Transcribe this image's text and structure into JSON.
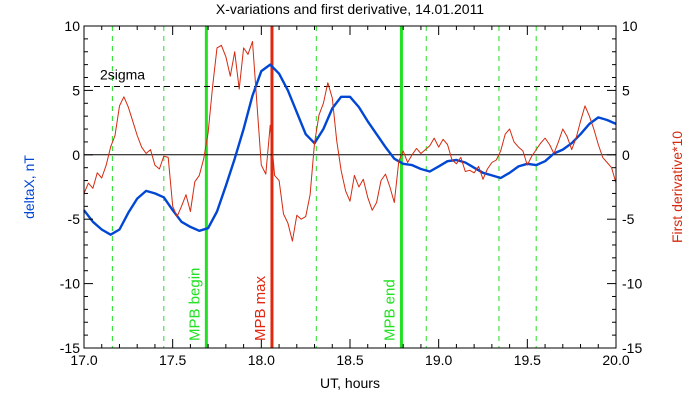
{
  "chart_data": {
    "type": "line",
    "title": "X-variations and first derivative, 14.01.2011",
    "xlabel": "UT, hours",
    "ylabel_left": "deltaX, nT",
    "ylabel_right": "First derivative*10",
    "xlim": [
      17.0,
      20.0
    ],
    "ylim": [
      -15,
      10
    ],
    "x_ticks": [
      17.0,
      17.5,
      18.0,
      18.5,
      19.0,
      19.5,
      20.0
    ],
    "x_tick_labels": [
      "17.0",
      "17.5",
      "18.0",
      "18.5",
      "19.0",
      "19.5",
      "20.0"
    ],
    "y_ticks": [
      10,
      5,
      0,
      -5,
      -10,
      -15
    ],
    "y_tick_labels": [
      "10",
      "5",
      "0",
      "-5",
      "-10",
      "-15"
    ],
    "colors": {
      "deltaX": "#0047d4",
      "derivative": "#d42a10",
      "mpb_lines": "#22e022",
      "mpb_max": "#e02810",
      "zero_line": "#000000",
      "sigma_line": "#000000"
    },
    "sigma_level": 5.3,
    "sigma_label": "2sigma",
    "zero_level": 0,
    "vertical_markers": [
      {
        "x": 17.69,
        "label": "MPB begin",
        "kind": "green"
      },
      {
        "x": 18.06,
        "label": "MPB max",
        "kind": "red"
      },
      {
        "x": 18.79,
        "label": "MPB end",
        "kind": "green"
      }
    ],
    "dashed_verticals": [
      17.16,
      17.45,
      18.31,
      18.93,
      19.34,
      19.55
    ],
    "series": [
      {
        "key": "deltaX",
        "x": [
          17.0,
          17.05,
          17.1,
          17.15,
          17.2,
          17.25,
          17.3,
          17.35,
          17.4,
          17.45,
          17.5,
          17.55,
          17.6,
          17.65,
          17.7,
          17.75,
          17.8,
          17.85,
          17.9,
          17.95,
          18.0,
          18.05,
          18.1,
          18.15,
          18.2,
          18.25,
          18.3,
          18.35,
          18.4,
          18.45,
          18.5,
          18.55,
          18.6,
          18.65,
          18.7,
          18.75,
          18.8,
          18.85,
          18.9,
          18.95,
          19.0,
          19.05,
          19.1,
          19.15,
          19.2,
          19.25,
          19.3,
          19.35,
          19.4,
          19.45,
          19.5,
          19.55,
          19.6,
          19.65,
          19.7,
          19.75,
          19.8,
          19.85,
          19.9,
          19.95,
          20.0
        ],
        "y": [
          -4.3,
          -5.2,
          -5.8,
          -6.2,
          -5.8,
          -4.5,
          -3.4,
          -2.8,
          -3.0,
          -3.3,
          -4.3,
          -5.2,
          -5.6,
          -5.9,
          -5.7,
          -4.4,
          -2.4,
          -0.3,
          2.0,
          4.6,
          6.5,
          7.0,
          6.3,
          5.0,
          3.3,
          1.6,
          0.9,
          2.0,
          3.6,
          4.5,
          4.5,
          3.7,
          2.6,
          1.6,
          0.6,
          -0.3,
          -0.7,
          -0.8,
          -1.1,
          -1.3,
          -0.9,
          -0.5,
          -0.4,
          -0.6,
          -1.0,
          -1.4,
          -1.6,
          -1.8,
          -1.4,
          -0.9,
          -0.7,
          -0.8,
          -0.5,
          0.1,
          0.4,
          0.9,
          1.6,
          2.4,
          2.9,
          2.7,
          2.4
        ]
      },
      {
        "key": "derivative",
        "x": [
          17.0,
          17.025,
          17.05,
          17.075,
          17.1,
          17.125,
          17.15,
          17.175,
          17.2,
          17.225,
          17.25,
          17.275,
          17.3,
          17.325,
          17.35,
          17.375,
          17.4,
          17.425,
          17.45,
          17.475,
          17.5,
          17.525,
          17.55,
          17.575,
          17.6,
          17.625,
          17.65,
          17.675,
          17.7,
          17.725,
          17.75,
          17.775,
          17.8,
          17.825,
          17.85,
          17.875,
          17.9,
          17.925,
          17.95,
          17.975,
          18.0,
          18.025,
          18.05,
          18.075,
          18.1,
          18.125,
          18.15,
          18.175,
          18.2,
          18.225,
          18.25,
          18.275,
          18.3,
          18.325,
          18.35,
          18.375,
          18.4,
          18.425,
          18.45,
          18.475,
          18.5,
          18.525,
          18.55,
          18.575,
          18.6,
          18.625,
          18.65,
          18.675,
          18.7,
          18.725,
          18.75,
          18.775,
          18.8,
          18.825,
          18.85,
          18.875,
          18.9,
          18.925,
          18.95,
          18.975,
          19.0,
          19.025,
          19.05,
          19.075,
          19.1,
          19.125,
          19.15,
          19.175,
          19.2,
          19.225,
          19.25,
          19.275,
          19.3,
          19.325,
          19.35,
          19.375,
          19.4,
          19.425,
          19.45,
          19.475,
          19.5,
          19.525,
          19.55,
          19.575,
          19.6,
          19.625,
          19.65,
          19.675,
          19.7,
          19.725,
          19.75,
          19.775,
          19.8,
          19.825,
          19.85,
          19.875,
          19.9,
          19.925,
          19.95,
          19.975,
          20.0
        ],
        "y": [
          -3.0,
          -2.2,
          -2.6,
          -1.4,
          -1.8,
          -0.8,
          0.6,
          1.5,
          3.8,
          4.5,
          3.7,
          2.6,
          1.5,
          0.6,
          0.1,
          0.4,
          -0.8,
          -1.1,
          -0.1,
          -0.2,
          -4.0,
          -4.8,
          -4.0,
          -3.1,
          -4.4,
          -2.1,
          -1.6,
          -0.3,
          1.7,
          5.3,
          8.3,
          8.5,
          7.6,
          6.1,
          8.0,
          5.1,
          8.3,
          7.8,
          8.8,
          4.0,
          -0.8,
          -1.5,
          2.3,
          -1.6,
          -2.0,
          -4.6,
          -5.3,
          -6.7,
          -4.7,
          -5.0,
          -4.8,
          -3.1,
          0.9,
          3.1,
          4.0,
          5.6,
          4.4,
          1.1,
          -1.2,
          -2.8,
          -3.6,
          -1.6,
          -2.5,
          -1.9,
          -3.3,
          -4.3,
          -3.7,
          -2.0,
          -1.5,
          -2.5,
          -3.7,
          -0.5,
          0.3,
          -0.6,
          0.0,
          0.5,
          0.1,
          0.4,
          0.7,
          1.3,
          0.6,
          1.2,
          0.8,
          -0.4,
          -0.7,
          -0.2,
          -1.3,
          -1.2,
          -1.4,
          -0.9,
          -1.9,
          -1.1,
          -0.6,
          -0.4,
          0.3,
          1.6,
          2.0,
          1.0,
          0.6,
          0.3,
          -0.8,
          -0.1,
          0.4,
          0.9,
          1.3,
          0.8,
          0.1,
          1.0,
          2.0,
          1.4,
          0.4,
          1.3,
          2.6,
          3.8,
          3.0,
          2.0,
          0.8,
          -0.2,
          -0.6,
          -1.0,
          -2.2
        ]
      }
    ]
  }
}
